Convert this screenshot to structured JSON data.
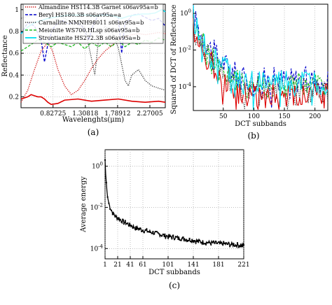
{
  "chart_data": [
    {
      "id": "a",
      "type": "line",
      "caption": "(a)",
      "xlabel": "Wavelenghts(μm)",
      "ylabel": "Reflectance",
      "xlim": [
        0.35,
        2.5
      ],
      "ylim": [
        0.1,
        1.05
      ],
      "xticks": [
        "0.82725",
        "1.30818",
        "1.78912",
        "2.27005"
      ],
      "yticks": [
        "0.2",
        "0.4",
        "0.6",
        "0.8",
        "1"
      ],
      "legend_position": "top",
      "series": [
        {
          "name": "Almandine HS114.3B Garnet s06av95a=b",
          "color": "#cc0000",
          "style": "dotted",
          "x": [
            0.35,
            0.45,
            0.55,
            0.65,
            0.75,
            0.82,
            0.9,
            1.0,
            1.1,
            1.2,
            1.3,
            1.4,
            1.5,
            1.6,
            1.7,
            1.8,
            1.9,
            2.0,
            2.1,
            2.2,
            2.3,
            2.4,
            2.5
          ],
          "y": [
            0.15,
            0.26,
            0.45,
            0.62,
            0.7,
            0.62,
            0.45,
            0.3,
            0.22,
            0.26,
            0.35,
            0.46,
            0.55,
            0.62,
            0.67,
            0.72,
            0.75,
            0.77,
            0.78,
            0.77,
            0.78,
            0.79,
            0.78
          ]
        },
        {
          "name": "Beryl HS180.3B s06av95a=a",
          "color": "#0000cc",
          "style": "dashed",
          "x": [
            0.35,
            0.45,
            0.55,
            0.65,
            0.7,
            0.75,
            0.82,
            0.9,
            0.97,
            1.05,
            1.15,
            1.25,
            1.3,
            1.36,
            1.42,
            1.5,
            1.6,
            1.7,
            1.8,
            1.85,
            1.9,
            1.95,
            2.0,
            2.1,
            2.2,
            2.3,
            2.4,
            2.5
          ],
          "y": [
            0.78,
            0.88,
            0.85,
            0.72,
            0.52,
            0.68,
            0.82,
            0.88,
            0.9,
            0.87,
            0.88,
            0.86,
            0.8,
            0.72,
            0.85,
            0.95,
            0.96,
            0.95,
            0.93,
            0.6,
            0.88,
            0.9,
            0.95,
            0.96,
            0.93,
            0.9,
            0.92,
            0.85
          ]
        },
        {
          "name": "Carnallite NMNH98011 s06av95a=b",
          "color": "#333333",
          "style": "dotted",
          "x": [
            0.35,
            0.5,
            0.7,
            0.9,
            1.0,
            1.1,
            1.2,
            1.3,
            1.4,
            1.45,
            1.5,
            1.6,
            1.7,
            1.8,
            1.9,
            1.95,
            2.0,
            2.1,
            2.2,
            2.3,
            2.4,
            2.5
          ],
          "y": [
            0.92,
            0.95,
            0.96,
            0.95,
            0.92,
            0.88,
            0.86,
            0.84,
            0.55,
            0.4,
            0.7,
            0.85,
            0.8,
            0.65,
            0.35,
            0.3,
            0.4,
            0.45,
            0.35,
            0.3,
            0.28,
            0.26
          ]
        },
        {
          "name": "Meionite WS700.HLsp s06av95a=b",
          "color": "#22bb22",
          "style": "dashed",
          "x": [
            0.35,
            0.5,
            0.6,
            0.7,
            0.8,
            0.9,
            1.0,
            1.1,
            1.2,
            1.3,
            1.4,
            1.5,
            1.6,
            1.7,
            1.8,
            1.9,
            2.0,
            2.1,
            2.2,
            2.3,
            2.4,
            2.5
          ],
          "y": [
            0.62,
            0.68,
            0.72,
            0.7,
            0.66,
            0.7,
            0.68,
            0.66,
            0.7,
            0.64,
            0.7,
            0.66,
            0.7,
            0.66,
            0.72,
            0.66,
            0.7,
            0.68,
            0.72,
            0.7,
            0.74,
            0.72
          ]
        },
        {
          "name": "Strontianite HS272.3B s06av95a=b",
          "color": "#00e0f0",
          "style": "solid",
          "x": [
            0.35,
            0.45,
            0.55,
            0.65,
            0.75,
            0.85,
            0.95,
            1.05,
            1.15,
            1.25,
            1.35,
            1.45,
            1.55,
            1.65,
            1.75,
            1.85,
            1.95,
            2.05,
            2.15,
            2.25,
            2.35,
            2.45,
            2.5
          ],
          "y": [
            0.78,
            0.84,
            0.88,
            0.9,
            0.92,
            0.93,
            0.94,
            0.95,
            0.95,
            0.95,
            0.95,
            0.94,
            0.95,
            0.95,
            0.94,
            0.92,
            0.94,
            0.95,
            0.96,
            0.96,
            0.97,
            1.0,
            0.98
          ]
        },
        {
          "name": "",
          "color": "#dd0000",
          "style": "solid",
          "x": [
            0.35,
            0.4,
            0.45,
            0.5,
            0.55,
            0.6,
            0.65,
            0.7,
            0.75,
            0.8,
            0.9,
            1.0,
            1.2,
            1.4,
            1.6,
            1.8,
            2.0,
            2.2,
            2.4,
            2.5
          ],
          "y": [
            0.18,
            0.19,
            0.2,
            0.22,
            0.21,
            0.2,
            0.2,
            0.18,
            0.15,
            0.13,
            0.14,
            0.17,
            0.18,
            0.16,
            0.17,
            0.18,
            0.16,
            0.15,
            0.16,
            0.15
          ]
        }
      ]
    },
    {
      "id": "b",
      "type": "line",
      "caption": "(b)",
      "xlabel": "DCT subbands",
      "ylabel": "Squared of DCT of Reflectance",
      "xlim": [
        1,
        221
      ],
      "ylim_log10": [
        -5.3,
        0.5
      ],
      "xticks": [
        "50",
        "100",
        "150",
        "200"
      ],
      "yticks": [
        "10^0",
        "10^-2",
        "10^-4"
      ],
      "series": [
        {
          "color": "#0000cc",
          "style": "dashed",
          "decay_log10": [
            0.3,
            -3.6
          ]
        },
        {
          "color": "#22bb22",
          "style": "dashed",
          "decay_log10": [
            0.1,
            -3.9
          ]
        },
        {
          "color": "#333333",
          "style": "dotted",
          "decay_log10": [
            -0.1,
            -4.2
          ]
        },
        {
          "color": "#dd0000",
          "style": "solid",
          "decay_log10": [
            -0.4,
            -4.4
          ]
        },
        {
          "color": "#00e0f0",
          "style": "solid",
          "decay_log10": [
            0.0,
            -3.8
          ]
        }
      ]
    },
    {
      "id": "c",
      "type": "line",
      "caption": "(c)",
      "xlabel": "DCT subbands",
      "ylabel": "Average energy",
      "xlim": [
        1,
        221
      ],
      "ylim_log10": [
        -4.5,
        0.8
      ],
      "xticks": [
        "1",
        "21",
        "41",
        "61",
        "101",
        "141",
        "181",
        "221"
      ],
      "yticks": [
        "10^0",
        "10^-2",
        "10^-4"
      ],
      "series": [
        {
          "color": "#000000",
          "style": "solid",
          "x": [
            1,
            2,
            3,
            4,
            5,
            7,
            9,
            12,
            15,
            20,
            25,
            30,
            40,
            50,
            60,
            80,
            100,
            120,
            140,
            160,
            180,
            200,
            221
          ],
          "y_log10": [
            0.3,
            -0.4,
            -0.8,
            -1.2,
            -1.5,
            -1.8,
            -2.0,
            -2.2,
            -2.35,
            -2.5,
            -2.6,
            -2.7,
            -2.85,
            -3.0,
            -3.1,
            -3.25,
            -3.4,
            -3.5,
            -3.6,
            -3.7,
            -3.75,
            -3.8,
            -3.85
          ]
        }
      ]
    }
  ]
}
